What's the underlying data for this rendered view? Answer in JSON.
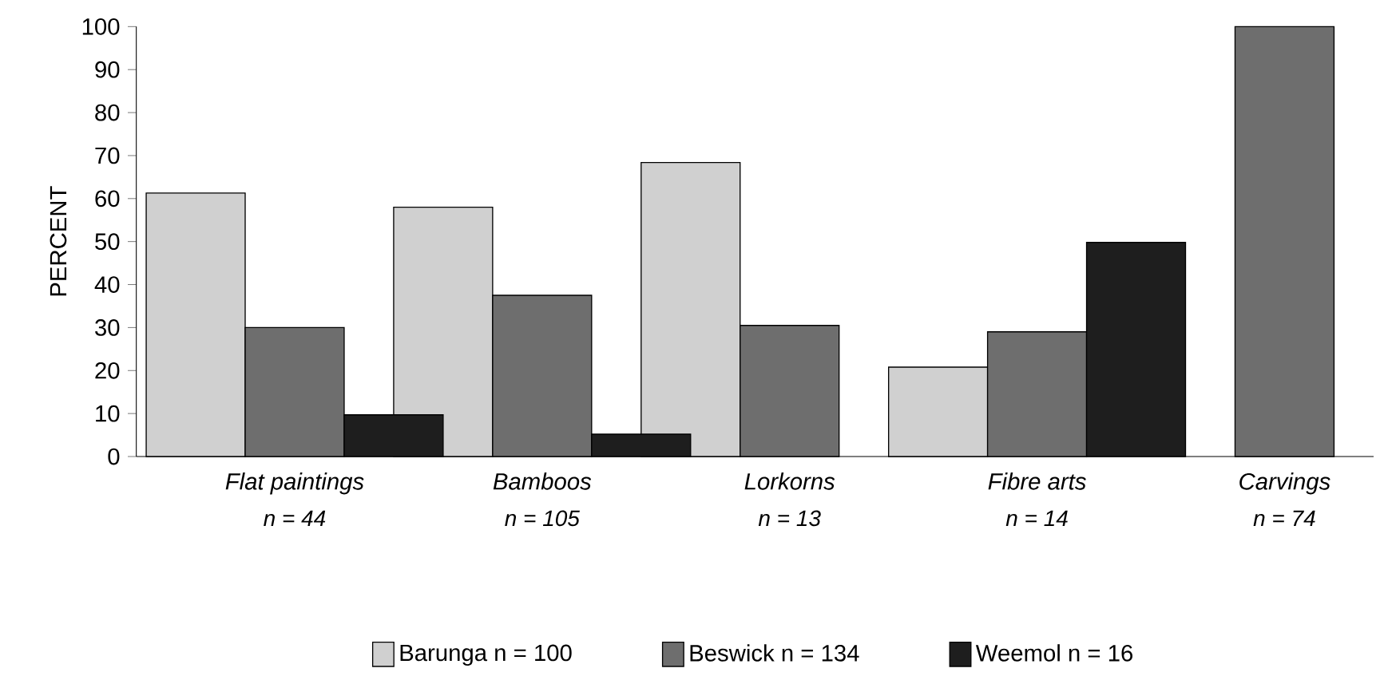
{
  "chart_data": {
    "type": "bar",
    "ylabel": "PERCENT",
    "categories": [
      "Flat paintings",
      "Bamboos",
      "Lorkorns",
      "Fibre arts",
      "Carvings"
    ],
    "series": [
      {
        "name": "Barunga  n = 100",
        "color": "#d0d0d0",
        "values": [
          61.3,
          58,
          68.4,
          20.8,
          null
        ]
      },
      {
        "name": "Beswick  n = 134",
        "color": "#6e6e6e",
        "values": [
          30,
          37.5,
          30.5,
          29,
          100
        ]
      },
      {
        "name": "Weemol  n = 16",
        "color": "#1e1e1e",
        "values": [
          9.7,
          5.2,
          null,
          49.8,
          null
        ]
      }
    ],
    "ylim": [
      0,
      100
    ],
    "yticks": [
      0,
      10,
      20,
      30,
      40,
      50,
      60,
      70,
      80,
      90,
      100
    ],
    "annotations": [
      "n = 44",
      "n = 105",
      "n = 13",
      "n = 14",
      "n = 74"
    ],
    "grid": false,
    "legend": "bottom"
  }
}
